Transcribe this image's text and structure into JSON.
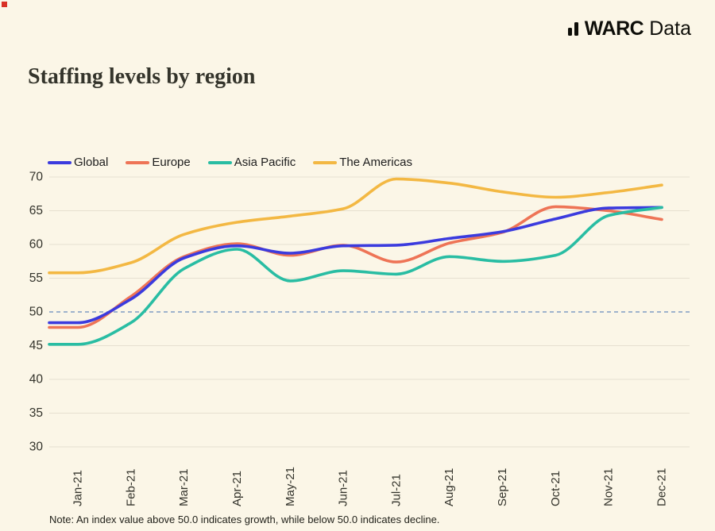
{
  "page": {
    "background": "#FBF6E7"
  },
  "header": {
    "logo_icon": "bar-chart-icon",
    "brand_bold": "WARC",
    "brand_regular": "Data"
  },
  "title": "Staffing levels by region",
  "note": "Note: An index value above 50.0 indicates growth, while below 50.0 indicates decline.",
  "chart_data": {
    "type": "line",
    "title": "Staffing levels by region",
    "categories": [
      "Jan-21",
      "Feb-21",
      "Mar-21",
      "Apr-21",
      "May-21",
      "Jun-21",
      "Jul-21",
      "Aug-21",
      "Sep-21",
      "Oct-21",
      "Nov-21",
      "Dec-21"
    ],
    "series": [
      {
        "name": "Global",
        "color": "#3B3BDE",
        "values": [
          48.4,
          51.9,
          58.0,
          59.8,
          58.7,
          59.8,
          59.9,
          60.9,
          61.9,
          63.8,
          65.4,
          65.5
        ]
      },
      {
        "name": "Europe",
        "color": "#EE7456",
        "values": [
          47.7,
          52.3,
          58.2,
          60.1,
          58.4,
          59.9,
          57.4,
          60.2,
          61.8,
          65.6,
          65.0,
          63.7
        ]
      },
      {
        "name": "Asia Pacific",
        "color": "#29BDA3",
        "values": [
          45.2,
          48.4,
          56.4,
          59.3,
          54.6,
          56.1,
          55.6,
          58.2,
          57.5,
          58.4,
          64.3,
          65.5
        ]
      },
      {
        "name": "The Americas",
        "color": "#F3B843",
        "values": [
          55.8,
          57.3,
          61.5,
          63.3,
          64.2,
          65.3,
          69.7,
          69.1,
          67.8,
          67.0,
          67.7,
          68.8
        ]
      }
    ],
    "xlabel": "",
    "ylabel": "",
    "ylim": [
      30,
      70
    ],
    "ytick_step": 5,
    "reference_line": {
      "value": 50,
      "style": "dashed",
      "color": "#7E9CC4"
    },
    "grid": "horizontal",
    "grid_color": "#E6E0D0",
    "tick_label_color": "#33332B",
    "legend_position": "top-left",
    "draw_order": [
      3,
      1,
      0,
      2
    ]
  }
}
